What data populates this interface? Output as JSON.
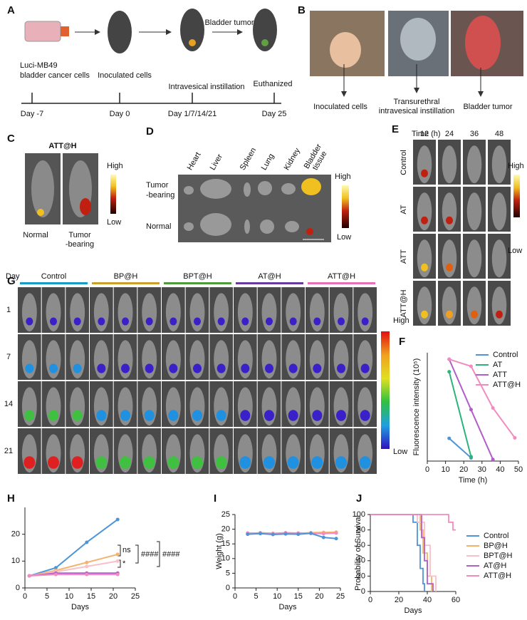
{
  "panel_labels": [
    "A",
    "B",
    "C",
    "D",
    "E",
    "F",
    "G",
    "H",
    "I",
    "J"
  ],
  "panel_a": {
    "cells": [
      "Luci-MB49",
      "bladder cancer cells"
    ],
    "inoculated": "Inoculated cells",
    "tumor": "Bladder tumor",
    "instillation": "Intravesical instillation",
    "euthanized": "Euthanized",
    "timeline": [
      "Day -7",
      "Day 0",
      "Day 1/7/14/21",
      "Day 25"
    ]
  },
  "panel_b": {
    "captions": [
      "Inoculated cells",
      "Transurethral",
      "intravesical instillation",
      "Bladder tumor"
    ]
  },
  "panel_c": {
    "title": "ATT@H",
    "high": "High",
    "low": "Low",
    "normal": "Normal",
    "tumor": [
      "Tumor",
      "-bearing"
    ]
  },
  "panel_d": {
    "organs": [
      "Heart",
      "Liver",
      "Spleen",
      "Lung",
      "Kidney",
      "Bladder",
      "tissue"
    ],
    "tumor": [
      "Tumor",
      "-bearing"
    ],
    "normal": "Normal",
    "high": "High",
    "low": "Low"
  },
  "panel_e": {
    "time": "Time (h)",
    "times": [
      "12",
      "24",
      "36",
      "48"
    ],
    "rows": [
      "Control",
      "AT",
      "ATT",
      "ATT@H"
    ],
    "high": "High",
    "low": "Low"
  },
  "panel_g": {
    "day": "Day",
    "groups": [
      {
        "name": "Control",
        "color": "#1a9bc4"
      },
      {
        "name": "BP@H",
        "color": "#c8a02a"
      },
      {
        "name": "BPT@H",
        "color": "#4f9a3c"
      },
      {
        "name": "AT@H",
        "color": "#6a3aa0"
      },
      {
        "name": "ATT@H",
        "color": "#e870b8"
      }
    ],
    "days": [
      "1",
      "7",
      "14",
      "21"
    ],
    "high": "High",
    "low": "Low"
  },
  "chart_data": [
    {
      "type": "line",
      "y_label": "Fluorescence  intensity (10⁵)",
      "x_label": "Time (h)",
      "x": [
        12,
        24,
        36,
        48
      ],
      "xlim": [
        0,
        50
      ],
      "xticks": [
        0,
        10,
        20,
        30,
        40,
        50
      ],
      "ylim": [
        0,
        20
      ],
      "series": [
        {
          "name": "Control",
          "color": "#4f94d8",
          "values": [
            4.2,
            0.6,
            null,
            null
          ]
        },
        {
          "name": "AT",
          "color": "#2db37a",
          "values": [
            16.5,
            0.8,
            null,
            null
          ]
        },
        {
          "name": "ATT",
          "color": "#b05fc9",
          "values": [
            18.8,
            9.5,
            0.3,
            null
          ]
        },
        {
          "name": "ATT@H",
          "color": "#f08cc0",
          "values": [
            18.8,
            17.5,
            9.8,
            4.3
          ]
        }
      ]
    },
    {
      "type": "line",
      "x_label": "Days",
      "x": [
        1,
        7,
        14,
        21
      ],
      "xlim": [
        0,
        25
      ],
      "xticks": [
        0,
        5,
        10,
        15,
        20,
        25
      ],
      "ylim": [
        0,
        30
      ],
      "yticks": [
        0,
        10,
        20
      ],
      "series": [
        {
          "color": "#4f94d8",
          "values": [
            4.5,
            7.5,
            17,
            25.5
          ]
        },
        {
          "color": "#f5b26b",
          "values": [
            4.5,
            6.5,
            9.5,
            12.5
          ]
        },
        {
          "color": "#f9c0c8",
          "values": [
            4.5,
            6,
            8,
            10
          ]
        },
        {
          "color": "#b05fc9",
          "values": [
            4.5,
            5.5,
            5.5,
            5.5
          ]
        },
        {
          "color": "#f08cc0",
          "values": [
            4.5,
            5,
            5,
            5
          ]
        }
      ],
      "annotations": [
        "ns",
        "*",
        "####",
        "####"
      ]
    },
    {
      "type": "line",
      "y_label": "Weight (g)",
      "x_label": "Days",
      "x": [
        3,
        6,
        9,
        12,
        15,
        18,
        21,
        24
      ],
      "xlim": [
        0,
        25
      ],
      "xticks": [
        0,
        5,
        10,
        15,
        20,
        25
      ],
      "ylim": [
        0,
        25
      ],
      "yticks": [
        0,
        5,
        10,
        15,
        20,
        25
      ],
      "series": [
        {
          "color": "#f5b26b",
          "values": [
            18.5,
            18.8,
            18.6,
            18.7,
            18.6,
            18.8,
            18.9,
            19
          ]
        },
        {
          "color": "#f08cc0",
          "values": [
            18.7,
            18.6,
            18.5,
            18.8,
            18.7,
            18.6,
            18.5,
            18.7
          ]
        },
        {
          "color": "#4f94d8",
          "values": [
            18.3,
            18.5,
            18.2,
            18.4,
            18.3,
            18.6,
            17.2,
            16.8
          ]
        }
      ]
    },
    {
      "type": "step",
      "y_label": "Probability of Survival",
      "x_label": "Days",
      "xlim": [
        0,
        60
      ],
      "xticks": [
        0,
        20,
        40,
        60
      ],
      "ylim": [
        0,
        100
      ],
      "yticks": [
        0,
        20,
        40,
        60,
        80,
        100
      ],
      "series": [
        {
          "name": "Control",
          "color": "#4f94d8",
          "x": [
            0,
            30,
            33,
            35,
            37,
            38
          ],
          "values": [
            100,
            90,
            60,
            30,
            10,
            0
          ]
        },
        {
          "name": "BP@H",
          "color": "#f5b26b",
          "x": [
            0,
            35,
            37,
            40,
            43
          ],
          "values": [
            100,
            80,
            50,
            20,
            0
          ]
        },
        {
          "name": "BPT@H",
          "color": "#f9c0c8",
          "x": [
            0,
            33,
            38,
            42,
            46
          ],
          "values": [
            100,
            90,
            60,
            20,
            0
          ]
        },
        {
          "name": "AT@H",
          "color": "#b05fc9",
          "x": [
            0,
            36,
            38,
            40,
            44
          ],
          "values": [
            100,
            70,
            40,
            10,
            0
          ]
        },
        {
          "name": "ATT@H",
          "color": "#f08cc0",
          "x": [
            0,
            50,
            55,
            58,
            60
          ],
          "values": [
            100,
            100,
            90,
            80,
            80
          ]
        }
      ]
    }
  ]
}
